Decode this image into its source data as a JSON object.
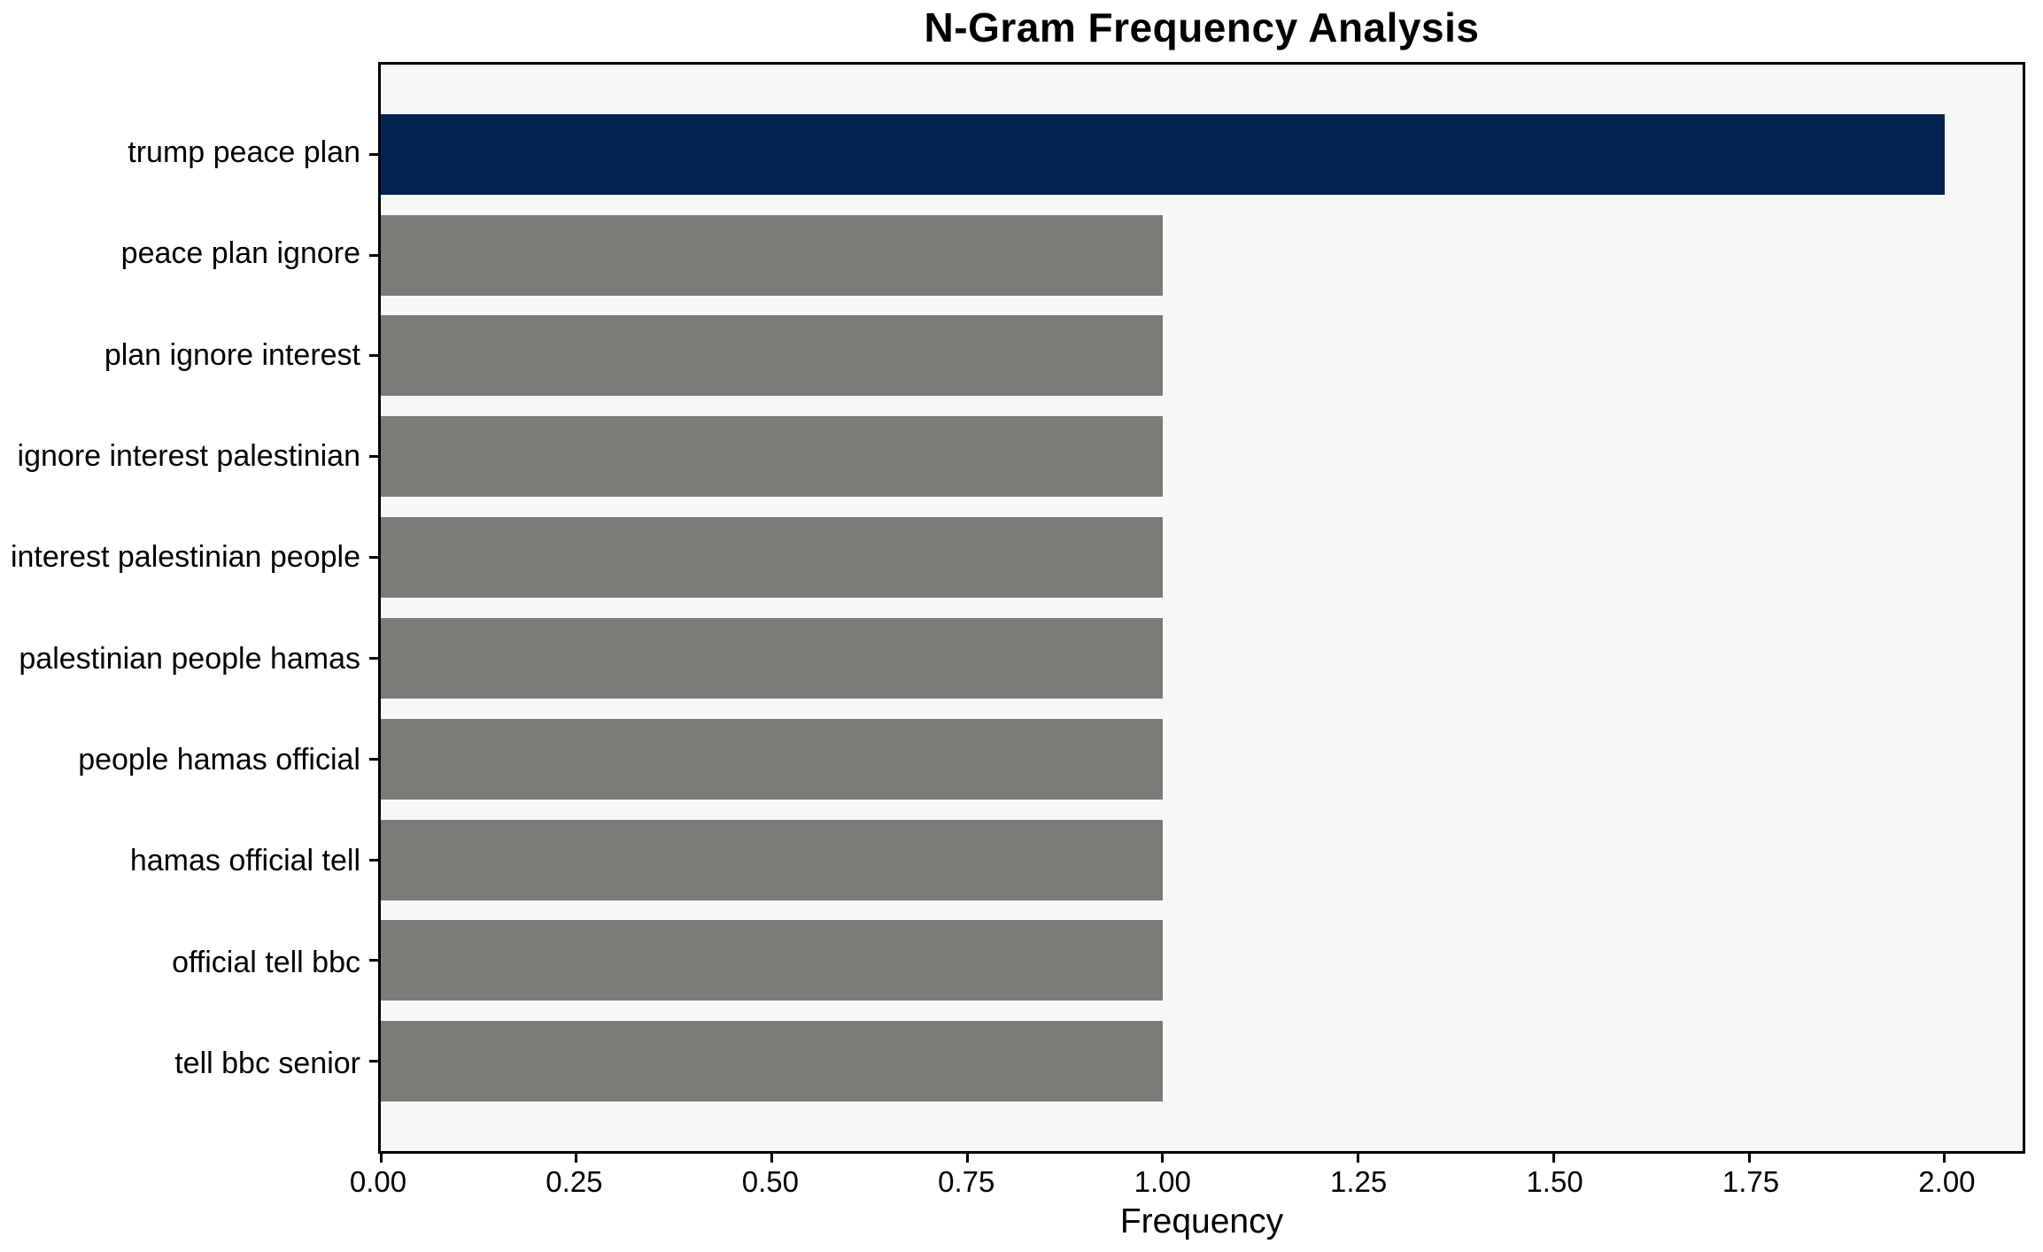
{
  "figure": {
    "background": "#ffffff"
  },
  "chart_data": {
    "type": "bar",
    "orientation": "horizontal",
    "title": "N-Gram Frequency Analysis",
    "xlabel": "Frequency",
    "ylabel": "",
    "categories": [
      "trump peace plan",
      "peace plan ignore",
      "plan ignore interest",
      "ignore interest palestinian",
      "interest palestinian people",
      "palestinian people hamas",
      "people hamas official",
      "hamas official tell",
      "official tell bbc",
      "tell bbc senior"
    ],
    "values": [
      2,
      1,
      1,
      1,
      1,
      1,
      1,
      1,
      1,
      1
    ],
    "bar_colors": [
      "#02234e",
      "#7b7b78",
      "#7b7b78",
      "#7b7b78",
      "#7b7b78",
      "#7b7b78",
      "#7b7b78",
      "#7b7b78",
      "#7b7b78",
      "#7b7b78"
    ],
    "xlim": [
      0,
      2.1
    ],
    "xticks": [
      {
        "value": 0.0,
        "label": "0.00"
      },
      {
        "value": 0.25,
        "label": "0.25"
      },
      {
        "value": 0.5,
        "label": "0.50"
      },
      {
        "value": 0.75,
        "label": "0.75"
      },
      {
        "value": 1.0,
        "label": "1.00"
      },
      {
        "value": 1.25,
        "label": "1.25"
      },
      {
        "value": 1.5,
        "label": "1.50"
      },
      {
        "value": 1.75,
        "label": "1.75"
      },
      {
        "value": 2.0,
        "label": "2.00"
      }
    ],
    "grid": "off",
    "legend": "none",
    "plot_background": "#f7f7f7",
    "spine_color": "#000000",
    "text_color": "#000000"
  }
}
